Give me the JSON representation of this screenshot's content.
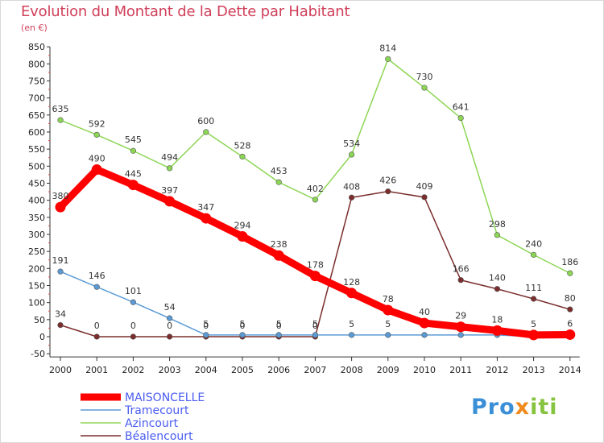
{
  "chart_data": {
    "type": "line",
    "title": "Evolution du Montant de la Dette par Habitant",
    "subtitle": "(en €)",
    "xlabel": "",
    "ylabel": "",
    "categories": [
      "2000",
      "2001",
      "2002",
      "2003",
      "2004",
      "2005",
      "2006",
      "2007",
      "2008",
      "2009",
      "2010",
      "2011",
      "2012",
      "2013",
      "2014"
    ],
    "ylim": [
      -50,
      850
    ],
    "yticks": [
      -50,
      0,
      50,
      100,
      150,
      200,
      250,
      300,
      350,
      400,
      450,
      500,
      550,
      600,
      650,
      700,
      750,
      800,
      850
    ],
    "grid": false,
    "legend": "bottom-left",
    "series": [
      {
        "name": "MAISONCELLE",
        "color": "#ff0000",
        "values": [
          380,
          490,
          445,
          397,
          347,
          294,
          238,
          178,
          128,
          78,
          40,
          29,
          18,
          5,
          6
        ],
        "labels": [
          "380",
          "490",
          "445",
          "397",
          "347",
          "294",
          "238",
          "178",
          "128",
          "78",
          "40",
          "29",
          "18",
          "5",
          "6"
        ]
      },
      {
        "name": "Tramecourt",
        "color": "#5b9bd5",
        "values": [
          191,
          146,
          101,
          54,
          5,
          5,
          5,
          5,
          5,
          5,
          5,
          5,
          5,
          0,
          0
        ],
        "labels": [
          "191",
          "146",
          "101",
          "54",
          "5",
          "5",
          "5",
          "5",
          "5",
          "5",
          "",
          "",
          "",
          "",
          ""
        ]
      },
      {
        "name": "Azincourt",
        "color": "#8dd655",
        "values": [
          635,
          592,
          545,
          494,
          600,
          528,
          453,
          402,
          534,
          814,
          730,
          641,
          298,
          240,
          186
        ],
        "labels": [
          "635",
          "592",
          "545",
          "494",
          "600",
          "528",
          "453",
          "402",
          "534",
          "814",
          "730",
          "641",
          "298",
          "240",
          "186"
        ]
      },
      {
        "name": "Béalencourt",
        "color": "#7b2d2d",
        "values": [
          34,
          0,
          0,
          0,
          0,
          0,
          0,
          0,
          408,
          426,
          409,
          166,
          140,
          111,
          80
        ],
        "labels": [
          "34",
          "0",
          "0",
          "0",
          "0",
          "0",
          "0",
          "0",
          "408",
          "426",
          "409",
          "166",
          "140",
          "111",
          "80"
        ]
      }
    ]
  },
  "brand": {
    "prefix": "Pro",
    "x": "x",
    "suffix": "iti",
    "full": "Proxiti"
  }
}
